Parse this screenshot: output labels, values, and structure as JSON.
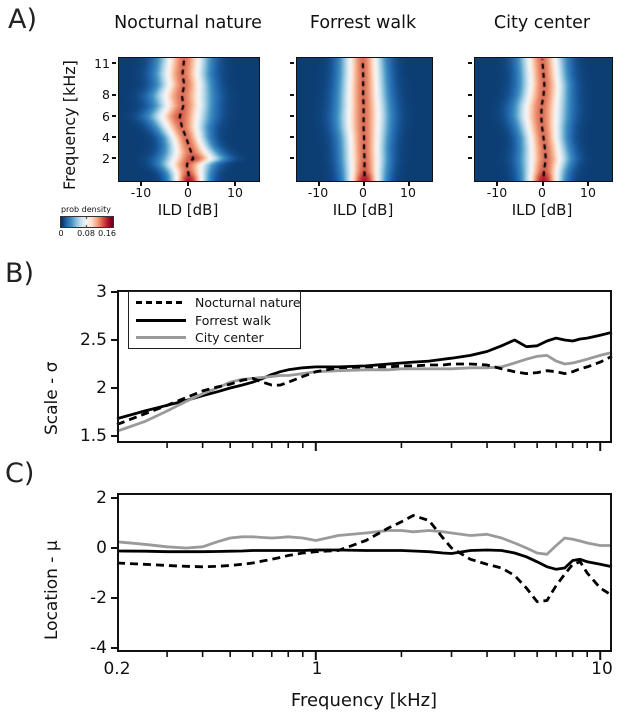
{
  "panels": {
    "a": {
      "label": "A)",
      "ylabel": "Frequency [kHz]",
      "yticklabels": [
        "2",
        "4",
        "6",
        "8",
        "11"
      ],
      "xticklabels": [
        "-10",
        "0",
        "10"
      ],
      "xlabel": "ILD [dB]",
      "colorbar": {
        "label": "prob density",
        "ticklabels": [
          "0",
          "0.08",
          "0.16"
        ]
      }
    },
    "b": {
      "label": "B)",
      "ylabel": "Scale - σ",
      "yticklabels": [
        "3",
        "2.5",
        "2",
        "1.5"
      ],
      "legend": [
        "Nocturnal nature",
        "Forrest walk",
        "City center"
      ]
    },
    "c": {
      "label": "C)",
      "ylabel": "Location - μ",
      "yticklabels": [
        "2",
        "0",
        "-2",
        "-4"
      ],
      "xticklabels": [
        "0.2",
        "1",
        "10"
      ],
      "xlabel": "Frequency [kHz]"
    }
  },
  "colors": {
    "black": "#000000",
    "gray": "#9a9a9a",
    "frame": "#111111"
  },
  "chart_data": [
    {
      "type": "heatmap",
      "panel": "A1",
      "title": "Nocturnal nature",
      "xlabel": "ILD [dB]",
      "ylabel": "Frequency [kHz]",
      "xlim": [
        -15,
        15
      ],
      "ylim": [
        -0.1,
        11.56
      ],
      "xticks": [
        -10,
        0,
        10
      ],
      "yticks": [
        2,
        4,
        6,
        8,
        11
      ],
      "colorbar": {
        "label": "prob density",
        "min": 0,
        "mid": 0.08,
        "max": 0.16
      },
      "rows": [
        {
          "f": 0.1,
          "mu": 0.0,
          "sigma": 2.4,
          "amp": 0.14
        },
        {
          "f": 0.6,
          "mu": -0.1,
          "sigma": 2.6,
          "amp": 0.125
        },
        {
          "f": 1.0,
          "mu": -0.3,
          "sigma": 2.9,
          "amp": 0.12
        },
        {
          "f": 1.5,
          "mu": -0.5,
          "sigma": 3.3,
          "amp": 0.12
        },
        {
          "f": 2.0,
          "mu": 0.9,
          "sigma": 3.8,
          "amp": 0.13
        },
        {
          "f": 2.6,
          "mu": 0.5,
          "sigma": 3.3,
          "amp": 0.12
        },
        {
          "f": 3.2,
          "mu": 0.0,
          "sigma": 2.9,
          "amp": 0.12
        },
        {
          "f": 4.0,
          "mu": -0.6,
          "sigma": 2.8,
          "amp": 0.12
        },
        {
          "f": 5.0,
          "mu": -1.5,
          "sigma": 3.2,
          "amp": 0.12
        },
        {
          "f": 6.0,
          "mu": -2.0,
          "sigma": 3.8,
          "amp": 0.125
        },
        {
          "f": 7.0,
          "mu": -1.2,
          "sigma": 3.5,
          "amp": 0.12
        },
        {
          "f": 8.0,
          "mu": -1.5,
          "sigma": 3.7,
          "amp": 0.12
        },
        {
          "f": 9.0,
          "mu": -1.0,
          "sigma": 3.3,
          "amp": 0.12
        },
        {
          "f": 10.0,
          "mu": -1.4,
          "sigma": 3.3,
          "amp": 0.12
        },
        {
          "f": 11.6,
          "mu": -1.0,
          "sigma": 3.2,
          "amp": 0.12
        }
      ]
    },
    {
      "type": "heatmap",
      "panel": "A2",
      "title": "Forrest walk",
      "xlabel": "ILD [dB]",
      "xlim": [
        -15,
        15
      ],
      "ylim": [
        -0.1,
        11.56
      ],
      "xticks": [
        -10,
        0,
        10
      ],
      "yticks": [
        2,
        4,
        6,
        8,
        11
      ],
      "rows": [
        {
          "f": 0.1,
          "mu": 0.0,
          "sigma": 2.6,
          "amp": 0.14
        },
        {
          "f": 0.8,
          "mu": 0.0,
          "sigma": 2.8,
          "amp": 0.125
        },
        {
          "f": 2.0,
          "mu": 0.0,
          "sigma": 3.0,
          "amp": 0.12
        },
        {
          "f": 3.0,
          "mu": -0.1,
          "sigma": 3.0,
          "amp": 0.12
        },
        {
          "f": 4.0,
          "mu": -0.1,
          "sigma": 3.1,
          "amp": 0.12
        },
        {
          "f": 5.0,
          "mu": -0.2,
          "sigma": 3.3,
          "amp": 0.12
        },
        {
          "f": 6.0,
          "mu": -0.2,
          "sigma": 3.4,
          "amp": 0.12
        },
        {
          "f": 7.0,
          "mu": -0.2,
          "sigma": 3.3,
          "amp": 0.12
        },
        {
          "f": 8.0,
          "mu": -0.3,
          "sigma": 3.2,
          "amp": 0.12
        },
        {
          "f": 9.0,
          "mu": -0.3,
          "sigma": 3.1,
          "amp": 0.12
        },
        {
          "f": 10.0,
          "mu": -0.3,
          "sigma": 3.0,
          "amp": 0.12
        },
        {
          "f": 11.6,
          "mu": -0.4,
          "sigma": 2.9,
          "amp": 0.12
        }
      ]
    },
    {
      "type": "heatmap",
      "panel": "A3",
      "title": "City center",
      "xlabel": "ILD [dB]",
      "xlim": [
        -15,
        15
      ],
      "ylim": [
        -0.1,
        11.56
      ],
      "xticks": [
        -10,
        0,
        10
      ],
      "yticks": [
        2,
        4,
        6,
        8,
        11
      ],
      "rows": [
        {
          "f": 0.1,
          "mu": 0.0,
          "sigma": 2.6,
          "amp": 0.14
        },
        {
          "f": 0.8,
          "mu": 0.1,
          "sigma": 2.8,
          "amp": 0.125
        },
        {
          "f": 2.0,
          "mu": 0.5,
          "sigma": 3.2,
          "amp": 0.12
        },
        {
          "f": 3.0,
          "mu": 0.3,
          "sigma": 3.0,
          "amp": 0.12
        },
        {
          "f": 4.0,
          "mu": 0.0,
          "sigma": 2.9,
          "amp": 0.12
        },
        {
          "f": 5.0,
          "mu": -0.3,
          "sigma": 3.1,
          "amp": 0.12
        },
        {
          "f": 6.0,
          "mu": -0.5,
          "sigma": 3.4,
          "amp": 0.12
        },
        {
          "f": 7.0,
          "mu": -0.4,
          "sigma": 3.4,
          "amp": 0.12
        },
        {
          "f": 8.0,
          "mu": 0.0,
          "sigma": 3.2,
          "amp": 0.12
        },
        {
          "f": 9.0,
          "mu": 0.2,
          "sigma": 3.1,
          "amp": 0.12
        },
        {
          "f": 10.0,
          "mu": 0.0,
          "sigma": 3.0,
          "amp": 0.12
        },
        {
          "f": 11.6,
          "mu": -0.3,
          "sigma": 3.0,
          "amp": 0.12
        }
      ]
    },
    {
      "type": "line",
      "panel": "B",
      "ylabel": "Scale - σ",
      "xscale": "log",
      "xlim": [
        0.2,
        11
      ],
      "ylim": [
        1.427,
        3.021
      ],
      "yticks": [
        3,
        2.5,
        2,
        1.5
      ],
      "xticks_minor": [
        0.3,
        0.4,
        0.5,
        0.6,
        0.7,
        0.8,
        0.9,
        2,
        3,
        4,
        5,
        6,
        7,
        8,
        9
      ],
      "xticks_major": [
        1,
        10
      ],
      "legend_position": "upper left",
      "x": [
        0.2,
        0.25,
        0.3,
        0.35,
        0.4,
        0.45,
        0.5,
        0.55,
        0.6,
        0.65,
        0.7,
        0.75,
        0.8,
        0.9,
        1.0,
        1.2,
        1.5,
        1.8,
        2.0,
        2.2,
        2.5,
        2.8,
        3.0,
        3.5,
        4.0,
        4.5,
        5.0,
        5.5,
        6.0,
        6.5,
        7.0,
        7.5,
        8.0,
        8.5,
        9.0,
        10.0,
        11.0
      ],
      "series": [
        {
          "name": "Nocturnal nature",
          "style": "dashed",
          "color": "#000000",
          "values": [
            1.62,
            1.73,
            1.82,
            1.9,
            1.97,
            2.01,
            2.04,
            2.08,
            2.1,
            2.06,
            2.03,
            2.03,
            2.06,
            2.12,
            2.17,
            2.21,
            2.22,
            2.22,
            2.23,
            2.23,
            2.24,
            2.24,
            2.25,
            2.25,
            2.24,
            2.2,
            2.17,
            2.15,
            2.16,
            2.18,
            2.17,
            2.15,
            2.17,
            2.2,
            2.22,
            2.27,
            2.33
          ]
        },
        {
          "name": "Forrest walk",
          "style": "solid",
          "color": "#000000",
          "values": [
            1.68,
            1.76,
            1.82,
            1.87,
            1.92,
            1.96,
            2.0,
            2.03,
            2.06,
            2.1,
            2.14,
            2.17,
            2.19,
            2.21,
            2.22,
            2.22,
            2.23,
            2.25,
            2.26,
            2.27,
            2.28,
            2.3,
            2.31,
            2.34,
            2.38,
            2.44,
            2.5,
            2.43,
            2.44,
            2.49,
            2.52,
            2.5,
            2.49,
            2.51,
            2.52,
            2.55,
            2.58
          ]
        },
        {
          "name": "City center",
          "style": "solid",
          "color": "#9a9a9a",
          "values": [
            1.55,
            1.65,
            1.76,
            1.86,
            1.94,
            2.0,
            2.06,
            2.09,
            2.1,
            2.11,
            2.12,
            2.13,
            2.13,
            2.15,
            2.17,
            2.18,
            2.19,
            2.19,
            2.2,
            2.2,
            2.2,
            2.2,
            2.2,
            2.21,
            2.21,
            2.22,
            2.26,
            2.3,
            2.33,
            2.34,
            2.28,
            2.25,
            2.26,
            2.28,
            2.3,
            2.34,
            2.37
          ]
        }
      ]
    },
    {
      "type": "line",
      "panel": "C",
      "ylabel": "Location - μ",
      "xlabel": "Frequency [kHz]",
      "xscale": "log",
      "xlim": [
        0.2,
        11
      ],
      "ylim": [
        -4.16,
        2.2
      ],
      "yticks": [
        2,
        0,
        -2,
        -4
      ],
      "xticks_labeled": [
        0.2,
        1,
        10
      ],
      "xticks_minor": [
        0.3,
        0.4,
        0.5,
        0.6,
        0.7,
        0.8,
        0.9,
        2,
        3,
        4,
        5,
        6,
        7,
        8,
        9
      ],
      "xticks_major": [
        1,
        10
      ],
      "x": [
        0.2,
        0.25,
        0.3,
        0.35,
        0.4,
        0.45,
        0.5,
        0.55,
        0.6,
        0.65,
        0.7,
        0.75,
        0.8,
        0.9,
        1.0,
        1.2,
        1.5,
        1.8,
        2.0,
        2.2,
        2.5,
        2.8,
        3.0,
        3.5,
        4.0,
        4.5,
        5.0,
        5.5,
        6.0,
        6.5,
        7.0,
        7.5,
        8.0,
        8.5,
        9.0,
        10.0,
        11.0
      ],
      "series": [
        {
          "name": "Nocturnal nature",
          "style": "dashed",
          "color": "#000000",
          "values": [
            -0.6,
            -0.65,
            -0.7,
            -0.73,
            -0.75,
            -0.73,
            -0.7,
            -0.65,
            -0.6,
            -0.52,
            -0.45,
            -0.38,
            -0.3,
            -0.2,
            -0.15,
            -0.1,
            0.3,
            0.8,
            1.05,
            1.3,
            1.1,
            0.4,
            0.0,
            -0.45,
            -0.65,
            -0.8,
            -1.1,
            -1.6,
            -2.15,
            -2.1,
            -1.5,
            -1.05,
            -0.65,
            -0.55,
            -1.0,
            -1.6,
            -1.9
          ]
        },
        {
          "name": "Forrest walk",
          "style": "solid",
          "color": "#000000",
          "values": [
            -0.12,
            -0.13,
            -0.15,
            -0.15,
            -0.15,
            -0.14,
            -0.13,
            -0.12,
            -0.1,
            -0.1,
            -0.1,
            -0.1,
            -0.1,
            -0.1,
            -0.08,
            -0.08,
            -0.1,
            -0.1,
            -0.1,
            -0.12,
            -0.15,
            -0.2,
            -0.22,
            -0.1,
            -0.08,
            -0.1,
            -0.2,
            -0.35,
            -0.55,
            -0.75,
            -0.85,
            -0.8,
            -0.5,
            -0.45,
            -0.55,
            -0.65,
            -0.75
          ]
        },
        {
          "name": "City center",
          "style": "solid",
          "color": "#9a9a9a",
          "values": [
            0.25,
            0.15,
            0.05,
            0.0,
            0.05,
            0.25,
            0.4,
            0.45,
            0.45,
            0.42,
            0.4,
            0.42,
            0.45,
            0.4,
            0.3,
            0.5,
            0.6,
            0.7,
            0.7,
            0.65,
            0.7,
            0.65,
            0.6,
            0.5,
            0.55,
            0.4,
            0.2,
            0.0,
            -0.2,
            -0.25,
            0.1,
            0.4,
            0.35,
            0.28,
            0.2,
            0.1,
            0.1
          ]
        }
      ]
    }
  ]
}
